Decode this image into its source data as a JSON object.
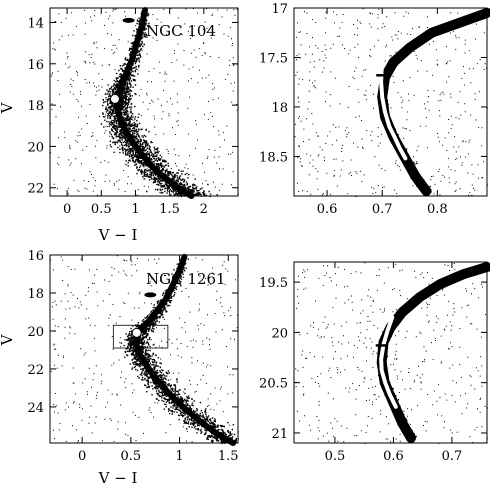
{
  "chart_data": [
    {
      "type": "scatter",
      "title": "NGC 104",
      "xlabel": "V − I",
      "ylabel": "V",
      "xlim": [
        -0.25,
        2.5
      ],
      "ylim": [
        22.4,
        13.3
      ],
      "y_inverted": true,
      "xticks": [
        0,
        0.5,
        1,
        1.5,
        2
      ],
      "xtick_labels": [
        "0",
        "0.5",
        "1",
        "1.5",
        "2"
      ],
      "yticks": [
        14,
        16,
        18,
        20,
        22
      ],
      "ytick_labels": [
        "14",
        "16",
        "18",
        "20",
        "22"
      ],
      "sequence": {
        "x": [
          1.14,
          1.09,
          1.02,
          0.95,
          0.86,
          0.8,
          0.76,
          0.74,
          0.73,
          0.76,
          0.82,
          0.9,
          1.0,
          1.12,
          1.25,
          1.42,
          1.62,
          1.82
        ],
        "y": [
          13.4,
          14.2,
          15.0,
          15.8,
          16.5,
          17.0,
          17.4,
          17.7,
          18.0,
          18.5,
          19.0,
          19.5,
          20.0,
          20.5,
          21.0,
          21.5,
          22.0,
          22.4
        ]
      },
      "turnoff_marker": {
        "x": 0.7,
        "y": 17.7
      },
      "clump": {
        "x": 0.9,
        "y": 13.9
      }
    },
    {
      "type": "scatter",
      "title": "",
      "xlabel": "",
      "ylabel": "",
      "xlim": [
        0.54,
        0.89
      ],
      "ylim": [
        18.9,
        17.0
      ],
      "y_inverted": true,
      "xticks": [
        0.6,
        0.7,
        0.8
      ],
      "xtick_labels": [
        "0.6",
        "0.7",
        "0.8"
      ],
      "yticks": [
        17,
        17.5,
        18,
        18.5
      ],
      "ytick_labels": [
        "17",
        "17.5",
        "18",
        "18.5"
      ],
      "sequence": {
        "x": [
          0.89,
          0.84,
          0.79,
          0.75,
          0.72,
          0.705,
          0.7,
          0.705,
          0.72,
          0.74,
          0.76,
          0.78
        ],
        "y": [
          17.05,
          17.15,
          17.25,
          17.4,
          17.55,
          17.7,
          17.9,
          18.1,
          18.3,
          18.5,
          18.7,
          18.85
        ]
      },
      "fiducial_line": {
        "x": [
          0.702,
          0.699,
          0.698,
          0.7,
          0.705,
          0.713,
          0.722,
          0.732,
          0.742
        ],
        "y": [
          17.45,
          17.6,
          17.75,
          17.9,
          18.05,
          18.2,
          18.3,
          18.42,
          18.52
        ]
      },
      "turnoff_marker": {
        "x": 0.7,
        "y": 17.68
      }
    },
    {
      "type": "scatter",
      "title": "NGC 1261",
      "xlabel": "V − I",
      "ylabel": "V",
      "xlim": [
        -0.33,
        1.6
      ],
      "ylim": [
        25.9,
        16.0
      ],
      "y_inverted": true,
      "xticks": [
        0,
        0.5,
        1,
        1.5
      ],
      "xtick_labels": [
        "0",
        "0.5",
        "1",
        "1.5"
      ],
      "yticks": [
        18,
        20,
        22,
        24
      ],
      "ytick_labels": [
        "18",
        "20",
        "22",
        "24"
      ],
      "extra_ytick_labels": [
        "16"
      ],
      "sequence": {
        "x": [
          1.05,
          1.0,
          0.93,
          0.85,
          0.76,
          0.68,
          0.62,
          0.58,
          0.56,
          0.56,
          0.6,
          0.66,
          0.74,
          0.84,
          0.95,
          1.08,
          1.22,
          1.38,
          1.55
        ],
        "y": [
          16.1,
          16.8,
          17.6,
          18.4,
          19.0,
          19.5,
          19.8,
          20.1,
          20.4,
          20.8,
          21.3,
          21.8,
          22.4,
          23.0,
          23.6,
          24.2,
          24.8,
          25.4,
          25.9
        ]
      },
      "turnoff_marker": {
        "x": 0.56,
        "y": 20.1
      },
      "clump": {
        "x": 0.7,
        "y": 18.1
      }
    },
    {
      "type": "scatter",
      "title": "",
      "xlabel": "",
      "ylabel": "",
      "xlim": [
        0.43,
        0.76
      ],
      "ylim": [
        21.1,
        19.3
      ],
      "y_inverted": true,
      "xticks": [
        0.5,
        0.6,
        0.7
      ],
      "xtick_labels": [
        "0.5",
        "0.6",
        "0.7"
      ],
      "yticks": [
        19.5,
        20,
        20.5,
        21
      ],
      "ytick_labels": [
        "19.5",
        "20",
        "20.5",
        "21"
      ],
      "sequence": {
        "x": [
          0.76,
          0.72,
          0.68,
          0.645,
          0.615,
          0.595,
          0.583,
          0.58,
          0.585,
          0.6,
          0.615,
          0.63
        ],
        "y": [
          19.35,
          19.42,
          19.52,
          19.65,
          19.8,
          19.95,
          20.1,
          20.3,
          20.5,
          20.7,
          20.9,
          21.05
        ]
      },
      "fiducial_line": {
        "x": [
          0.598,
          0.59,
          0.583,
          0.579,
          0.58,
          0.586,
          0.594,
          0.604
        ],
        "y": [
          19.85,
          19.98,
          20.12,
          20.27,
          20.38,
          20.5,
          20.62,
          20.74
        ]
      },
      "turnoff_marker": {
        "x": 0.58,
        "y": 20.13
      }
    }
  ]
}
